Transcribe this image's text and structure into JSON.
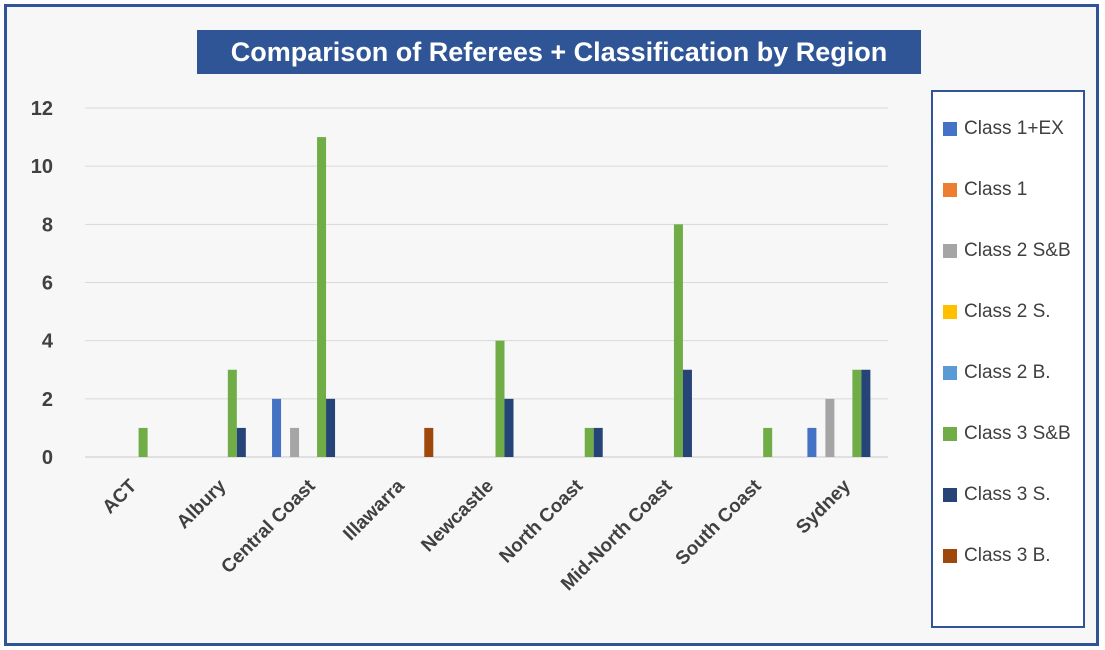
{
  "chart_data": {
    "type": "bar",
    "title": "Comparison of Referees + Classification by Region",
    "xlabel": "",
    "ylabel": "",
    "ylim": [
      0,
      12
    ],
    "yticks": [
      0,
      2,
      4,
      6,
      8,
      10,
      12
    ],
    "grid": true,
    "legend_position": "right",
    "categories": [
      "ACT",
      "Albury",
      "Central Coast",
      "Illawarra",
      "Newcastle",
      "North Coast",
      "Mid-North Coast",
      "South Coast",
      "Sydney"
    ],
    "series": [
      {
        "name": "Class 1+EX",
        "color": "#4472c4",
        "values": [
          0,
          0,
          2,
          0,
          0,
          0,
          0,
          0,
          1
        ]
      },
      {
        "name": "Class 1",
        "color": "#ed7d31",
        "values": [
          0,
          0,
          0,
          0,
          0,
          0,
          0,
          0,
          0
        ]
      },
      {
        "name": "Class 2 S&B",
        "color": "#a5a5a5",
        "values": [
          0,
          0,
          1,
          0,
          0,
          0,
          0,
          0,
          2
        ]
      },
      {
        "name": "Class 2 S.",
        "color": "#ffc000",
        "values": [
          0,
          0,
          0,
          0,
          0,
          0,
          0,
          0,
          0
        ]
      },
      {
        "name": "Class 2 B.",
        "color": "#5b9bd5",
        "values": [
          0,
          0,
          0,
          0,
          0,
          0,
          0,
          0,
          0
        ]
      },
      {
        "name": "Class 3 S&B",
        "color": "#70ad47",
        "values": [
          1,
          3,
          11,
          0,
          4,
          1,
          8,
          1,
          3
        ]
      },
      {
        "name": "Class 3 S.",
        "color": "#264478",
        "values": [
          0,
          1,
          2,
          0,
          2,
          1,
          3,
          0,
          3
        ]
      },
      {
        "name": "Class 3 B.",
        "color": "#9e480e",
        "values": [
          0,
          0,
          0,
          1,
          0,
          0,
          0,
          0,
          0
        ]
      }
    ]
  },
  "colors": {
    "frame": "#2f5597",
    "title_bg": "#2f5597",
    "title_text": "#ffffff",
    "axis_text": "#404040",
    "grid": "#d9d9d9"
  }
}
